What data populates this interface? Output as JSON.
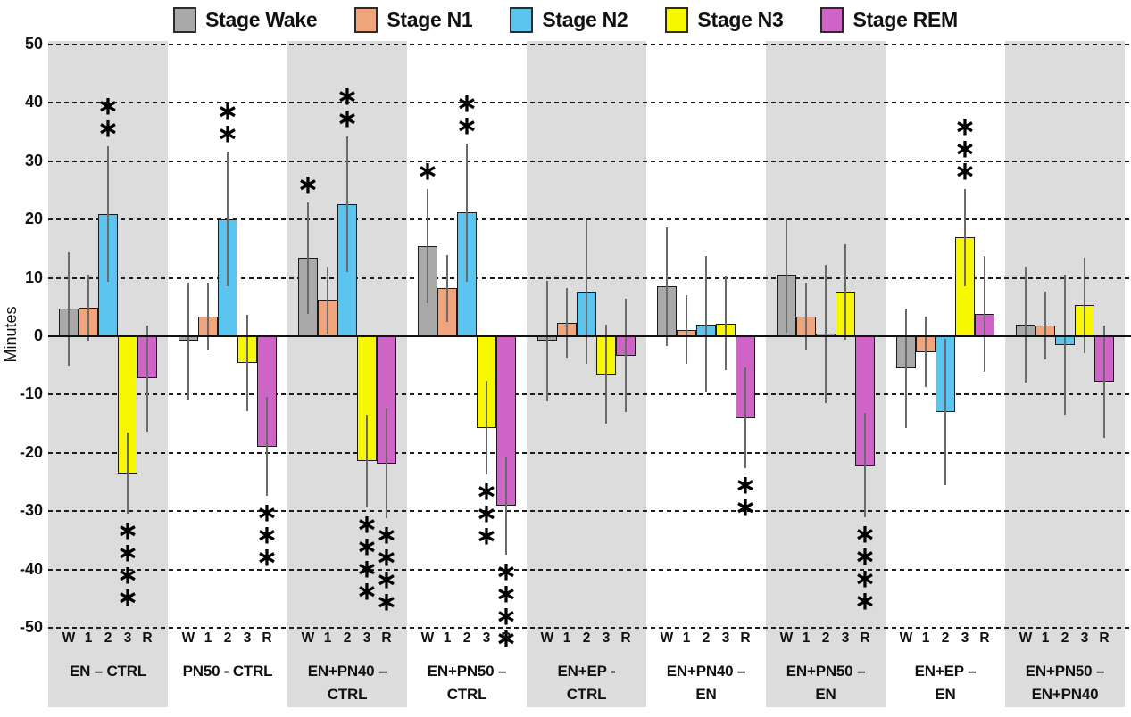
{
  "chart_data": {
    "type": "bar",
    "title": "",
    "ylabel": "Minutes",
    "ylim": [
      -50,
      50
    ],
    "yticks": [
      50,
      40,
      30,
      20,
      10,
      0,
      -10,
      -20,
      -30,
      -40,
      -50
    ],
    "grid": "dashed-horizontal",
    "legend_position": "top",
    "units": "Minutes",
    "colors": {
      "band": "#dcdcdc",
      "error_bar": "#6a6a6a",
      "bar_outline": "#1a1a1a",
      "gridline": "#1d1d1d"
    },
    "series": [
      {
        "name": "Stage Wake",
        "key": "W",
        "color": "#a9a9a9"
      },
      {
        "name": "Stage N1",
        "key": "1",
        "color": "#f0a57c"
      },
      {
        "name": "Stage N2",
        "key": "2",
        "color": "#5bc5ef"
      },
      {
        "name": "Stage N3",
        "key": "3",
        "color": "#f7f700"
      },
      {
        "name": "Stage REM",
        "key": "R",
        "color": "#ce64c6"
      }
    ],
    "groups": [
      {
        "label_lines": [
          "EN – CTRL"
        ],
        "shaded": true,
        "bars": [
          {
            "stage": "W",
            "value": 4.7,
            "err": 9.7,
            "sig": ""
          },
          {
            "stage": "1",
            "value": 4.9,
            "err": 5.7,
            "sig": ""
          },
          {
            "stage": "2",
            "value": 20.9,
            "err": 11.6,
            "sig": "**"
          },
          {
            "stage": "3",
            "value": -23.5,
            "err": 7.0,
            "sig": "****"
          },
          {
            "stage": "R",
            "value": -7.2,
            "err": 9.1,
            "sig": ""
          }
        ]
      },
      {
        "label_lines": [
          "PN50 - CTRL"
        ],
        "shaded": false,
        "bars": [
          {
            "stage": "W",
            "value": -0.8,
            "err": 10.0,
            "sig": ""
          },
          {
            "stage": "1",
            "value": 3.3,
            "err": 5.8,
            "sig": ""
          },
          {
            "stage": "2",
            "value": 20.1,
            "err": 11.6,
            "sig": "**"
          },
          {
            "stage": "3",
            "value": -4.6,
            "err": 8.2,
            "sig": ""
          },
          {
            "stage": "R",
            "value": -18.9,
            "err": 8.5,
            "sig": "***"
          }
        ]
      },
      {
        "label_lines": [
          "EN+PN40 –",
          "CTRL"
        ],
        "shaded": true,
        "bars": [
          {
            "stage": "W",
            "value": 13.4,
            "err": 9.6,
            "sig": "*"
          },
          {
            "stage": "1",
            "value": 6.2,
            "err": 5.8,
            "sig": ""
          },
          {
            "stage": "2",
            "value": 22.6,
            "err": 11.6,
            "sig": "**"
          },
          {
            "stage": "3",
            "value": -21.4,
            "err": 8.0,
            "sig": "****"
          },
          {
            "stage": "R",
            "value": -21.8,
            "err": 9.4,
            "sig": "****"
          }
        ]
      },
      {
        "label_lines": [
          "EN+PN50 –",
          "CTRL"
        ],
        "shaded": false,
        "bars": [
          {
            "stage": "W",
            "value": 15.4,
            "err": 9.8,
            "sig": "*"
          },
          {
            "stage": "1",
            "value": 8.2,
            "err": 5.7,
            "sig": ""
          },
          {
            "stage": "2",
            "value": 21.2,
            "err": 11.8,
            "sig": "**"
          },
          {
            "stage": "3",
            "value": -15.7,
            "err": 8.0,
            "sig": "***"
          },
          {
            "stage": "R",
            "value": -29.0,
            "err": 8.4,
            "sig": "****"
          }
        ]
      },
      {
        "label_lines": [
          "EN+EP -",
          "CTRL"
        ],
        "shaded": true,
        "bars": [
          {
            "stage": "W",
            "value": -0.8,
            "err": 10.3,
            "sig": ""
          },
          {
            "stage": "1",
            "value": 2.3,
            "err": 6.0,
            "sig": ""
          },
          {
            "stage": "2",
            "value": 7.6,
            "err": 12.3,
            "sig": ""
          },
          {
            "stage": "3",
            "value": -6.5,
            "err": 8.5,
            "sig": ""
          },
          {
            "stage": "R",
            "value": -3.3,
            "err": 9.7,
            "sig": ""
          }
        ]
      },
      {
        "label_lines": [
          "EN+PN40 –",
          "EN"
        ],
        "shaded": false,
        "bars": [
          {
            "stage": "W",
            "value": 8.5,
            "err": 10.2,
            "sig": ""
          },
          {
            "stage": "1",
            "value": 1.1,
            "err": 5.9,
            "sig": ""
          },
          {
            "stage": "2",
            "value": 2.0,
            "err": 11.7,
            "sig": ""
          },
          {
            "stage": "3",
            "value": 2.2,
            "err": 8.0,
            "sig": ""
          },
          {
            "stage": "R",
            "value": -14.0,
            "err": 8.6,
            "sig": "**"
          }
        ]
      },
      {
        "label_lines": [
          "EN+PN50 –",
          "EN"
        ],
        "shaded": true,
        "bars": [
          {
            "stage": "W",
            "value": 10.5,
            "err": 9.9,
            "sig": ""
          },
          {
            "stage": "1",
            "value": 3.4,
            "err": 5.7,
            "sig": ""
          },
          {
            "stage": "2",
            "value": 0.4,
            "err": 11.9,
            "sig": ""
          },
          {
            "stage": "3",
            "value": 7.6,
            "err": 8.2,
            "sig": ""
          },
          {
            "stage": "R",
            "value": -22.1,
            "err": 9.0,
            "sig": "****"
          }
        ]
      },
      {
        "label_lines": [
          "EN+EP –",
          "EN"
        ],
        "shaded": false,
        "bars": [
          {
            "stage": "W",
            "value": -5.5,
            "err": 10.3,
            "sig": ""
          },
          {
            "stage": "1",
            "value": -2.7,
            "err": 6.0,
            "sig": ""
          },
          {
            "stage": "2",
            "value": -13.0,
            "err": 12.6,
            "sig": ""
          },
          {
            "stage": "3",
            "value": 16.9,
            "err": 8.4,
            "sig": "***"
          },
          {
            "stage": "R",
            "value": 3.8,
            "err": 9.9,
            "sig": ""
          }
        ]
      },
      {
        "label_lines": [
          "EN+PN50 –",
          "EN+PN40"
        ],
        "shaded": true,
        "bars": [
          {
            "stage": "W",
            "value": 2.0,
            "err": 10.0,
            "sig": ""
          },
          {
            "stage": "1",
            "value": 1.9,
            "err": 5.8,
            "sig": ""
          },
          {
            "stage": "2",
            "value": -1.5,
            "err": 12.0,
            "sig": ""
          },
          {
            "stage": "3",
            "value": 5.3,
            "err": 8.2,
            "sig": ""
          },
          {
            "stage": "R",
            "value": -7.8,
            "err": 9.6,
            "sig": ""
          }
        ]
      }
    ]
  }
}
